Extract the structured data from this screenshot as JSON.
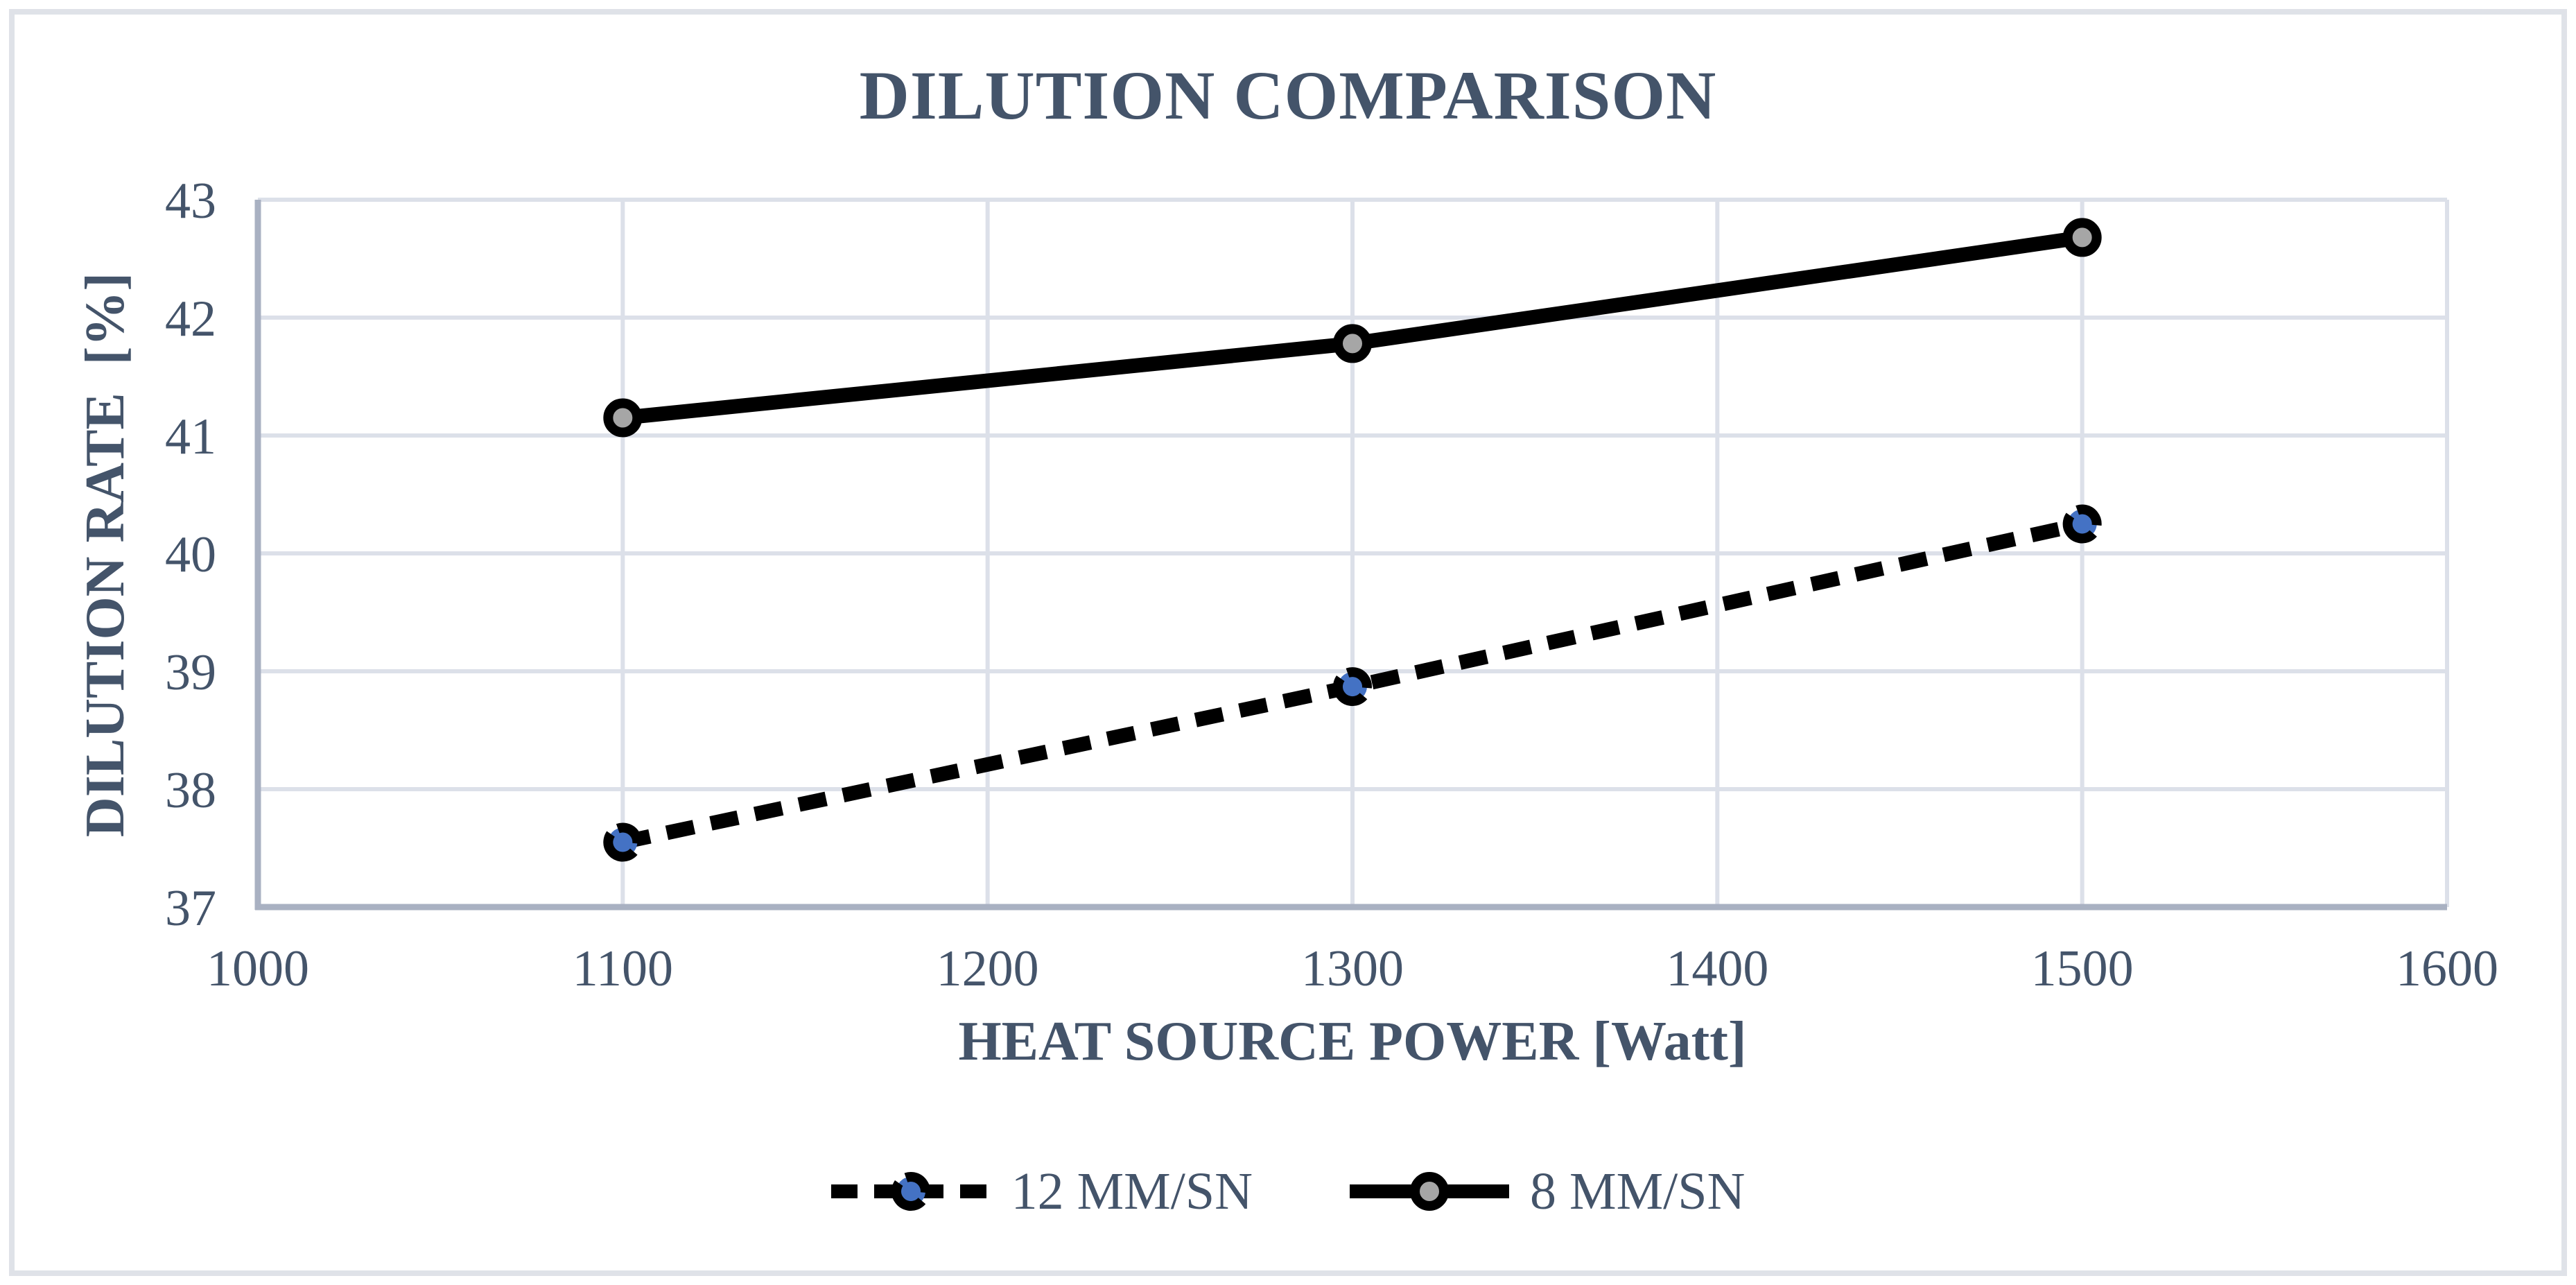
{
  "chart_data": {
    "type": "line",
    "title": "DILUTION COMPARISON",
    "xlabel": "HEAT SOURCE POWER [Watt]",
    "ylabel": "DILUTION RATE  [%]",
    "xlim": [
      1000,
      1600
    ],
    "ylim": [
      37,
      43
    ],
    "x_ticks": [
      1000,
      1100,
      1200,
      1300,
      1400,
      1500,
      1600
    ],
    "y_ticks": [
      37,
      38,
      39,
      40,
      41,
      42,
      43
    ],
    "x": [
      1100,
      1300,
      1500
    ],
    "grid": true,
    "legend_position": "bottom",
    "series": [
      {
        "name": "12 MM/SN",
        "values": [
          37.55,
          38.87,
          40.25
        ],
        "line_style": "dashed",
        "line_color": "#000000",
        "marker_fill": "#4472C4",
        "marker_ring": "#000000"
      },
      {
        "name": "8 MM/SN",
        "values": [
          41.15,
          41.78,
          42.68
        ],
        "line_style": "solid",
        "line_color": "#000000",
        "marker_fill": "#A6A6A6",
        "marker_ring": "#000000"
      }
    ]
  },
  "colors": {
    "text": "#44546A",
    "gridline": "#DCE0E9",
    "axis_line": "#A9B1C2",
    "frame_border": "#DFE2E8",
    "background": "#FFFFFF"
  }
}
